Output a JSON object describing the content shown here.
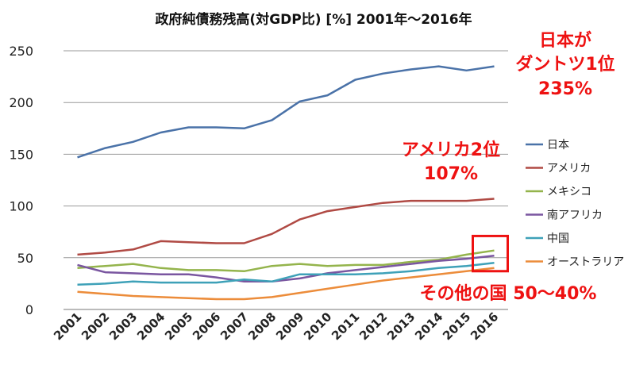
{
  "chart_data": {
    "type": "line",
    "title": "政府純債務残高(対GDP比) [%] 2001年～2016年",
    "xlabel": "",
    "ylabel": "",
    "ylim": [
      0,
      250
    ],
    "yticks": [
      "0",
      "50",
      "100",
      "150",
      "200",
      "250"
    ],
    "categories": [
      "2001",
      "2002",
      "2003",
      "2004",
      "2005",
      "2006",
      "2007",
      "2008",
      "2009",
      "2010",
      "2011",
      "2012",
      "2013",
      "2014",
      "2015",
      "2016"
    ],
    "grid": true,
    "legend_position": "right",
    "series": [
      {
        "name": "日本",
        "color": "#4a72a8",
        "values": [
          147,
          156,
          162,
          171,
          176,
          176,
          175,
          183,
          201,
          207,
          222,
          228,
          232,
          235,
          231,
          235
        ]
      },
      {
        "name": "アメリカ",
        "color": "#b04a44",
        "values": [
          53,
          55,
          58,
          66,
          65,
          64,
          64,
          73,
          87,
          95,
          99,
          103,
          105,
          105,
          105,
          107
        ]
      },
      {
        "name": "メキシコ",
        "color": "#94b44c",
        "values": [
          40,
          42,
          44,
          40,
          38,
          38,
          37,
          42,
          44,
          42,
          43,
          43,
          46,
          48,
          53,
          57
        ]
      },
      {
        "name": "南アフリカ",
        "color": "#7a56a0",
        "values": [
          43,
          36,
          35,
          34,
          34,
          31,
          27,
          27,
          30,
          35,
          38,
          41,
          44,
          47,
          49,
          52
        ]
      },
      {
        "name": "中国",
        "color": "#3ea1b8",
        "values": [
          24,
          25,
          27,
          26,
          26,
          26,
          29,
          27,
          34,
          34,
          34,
          35,
          37,
          40,
          42,
          45
        ]
      },
      {
        "name": "オーストラリア",
        "color": "#ec8c3a",
        "values": [
          17,
          15,
          13,
          12,
          11,
          10,
          10,
          12,
          16,
          20,
          24,
          28,
          31,
          34,
          37,
          40
        ]
      }
    ],
    "annotations": {
      "japan_line1": "日本が",
      "japan_line2": "ダントツ1位",
      "japan_line3": "235%",
      "us_line1": "アメリカ2位",
      "us_line2": "107%",
      "others": "その他の国 50～40%"
    },
    "highlight_box_color": "#ee1111"
  }
}
